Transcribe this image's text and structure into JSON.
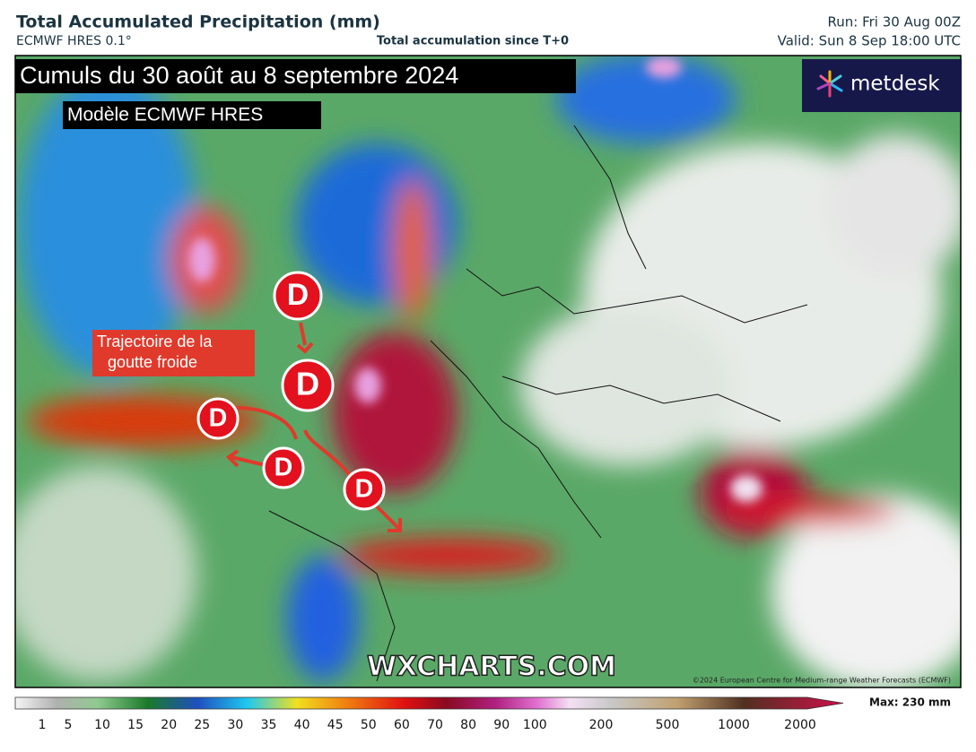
{
  "header": {
    "title": "Total Accumulated Precipitation (mm)",
    "model": "ECMWF HRES 0.1°",
    "subtitle": "Total accumulation since T+0",
    "run": "Run: Fri 30 Aug 00Z",
    "valid": "Valid: Sun 8 Sep 18:00 UTC"
  },
  "map": {
    "headline": "Cumuls du 30 août au 8 septembre 2024",
    "model_label": "Modèle ECMWF HRES",
    "logo": "metdesk",
    "annotation": [
      "Trajectoire de la",
      "goutte froide"
    ],
    "markers": [
      "D",
      "D",
      "D",
      "D",
      "D"
    ],
    "watermark": "WXCHARTS.COM",
    "copyright": "©2024 European Centre for Medium-range Weather Forecasts (ECMWF)"
  },
  "colorbar": {
    "ticks": [
      1,
      5,
      10,
      15,
      20,
      25,
      30,
      35,
      40,
      45,
      50,
      60,
      70,
      80,
      90,
      100,
      200,
      500,
      1000,
      2000
    ],
    "max_label": "Max: 230 mm"
  }
}
